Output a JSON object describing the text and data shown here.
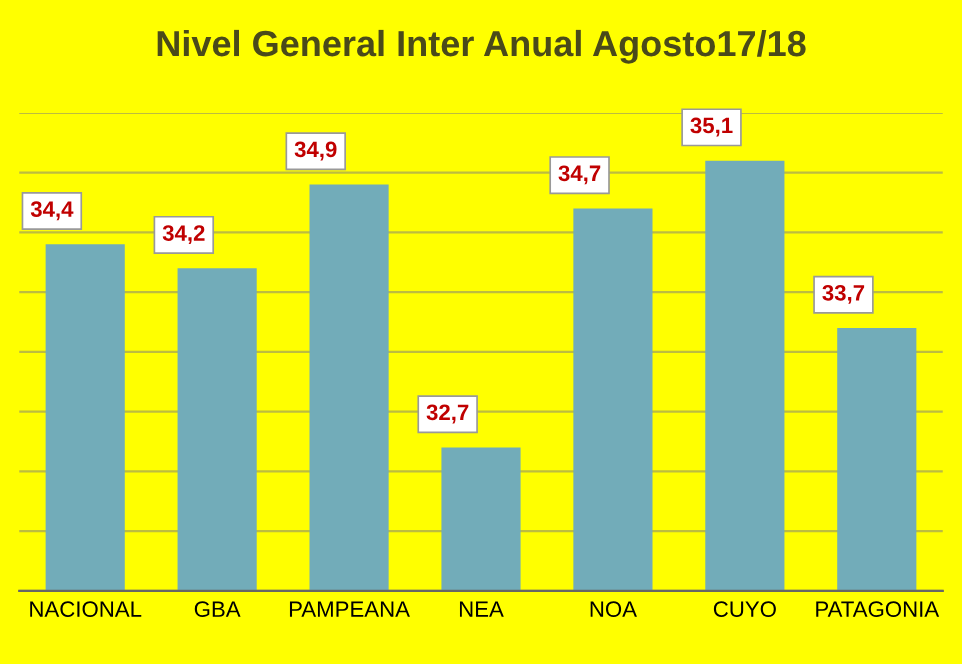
{
  "chart_data": {
    "type": "bar",
    "title": "Nivel General Inter Anual Agosto17/18",
    "categories": [
      "NACIONAL",
      "GBA",
      "PAMPEANA",
      "NEA",
      "NOA",
      "CUYO",
      "PATAGONIA"
    ],
    "values": [
      34.4,
      34.2,
      34.9,
      32.7,
      34.7,
      35.1,
      33.7
    ],
    "color": "#72acb9",
    "value_labels": [
      "34,4",
      "34,2",
      "34,9",
      "32,7",
      "34,7",
      "35,1",
      "33,7"
    ],
    "ylim": [
      31.5,
      35.5
    ],
    "yticks": [
      {
        "value": 31.5,
        "label": null
      },
      {
        "value": 32.0,
        "label": null
      },
      {
        "value": 32.5,
        "label": null
      },
      {
        "value": 33.0,
        "label": null
      },
      {
        "value": 33.5,
        "label": null
      },
      {
        "value": 34.0,
        "label": null
      },
      {
        "value": 34.5,
        "label": null
      },
      {
        "value": 35.0,
        "label": null
      },
      {
        "value": 35.5,
        "label": null
      }
    ],
    "tick_labels": "x",
    "grid": "y"
  }
}
